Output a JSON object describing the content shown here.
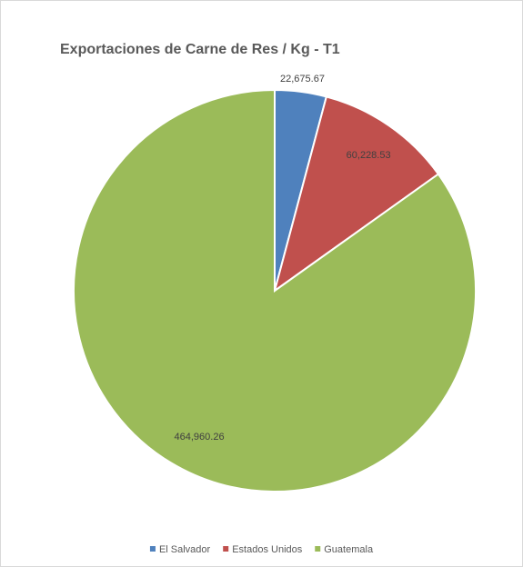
{
  "chart_data": {
    "type": "pie",
    "title": "Exportaciones de Carne de Res  / Kg - T1",
    "categories": [
      "El Salvador",
      "Estados Unidos",
      "Guatemala"
    ],
    "values": [
      22675.67,
      60228.53,
      464960.26
    ],
    "value_labels": [
      "22,675.67",
      "60,228.53",
      "464,960.26"
    ],
    "colors": [
      "#4f81bd",
      "#c0504d",
      "#9bbb59"
    ],
    "legend": "bottom"
  }
}
